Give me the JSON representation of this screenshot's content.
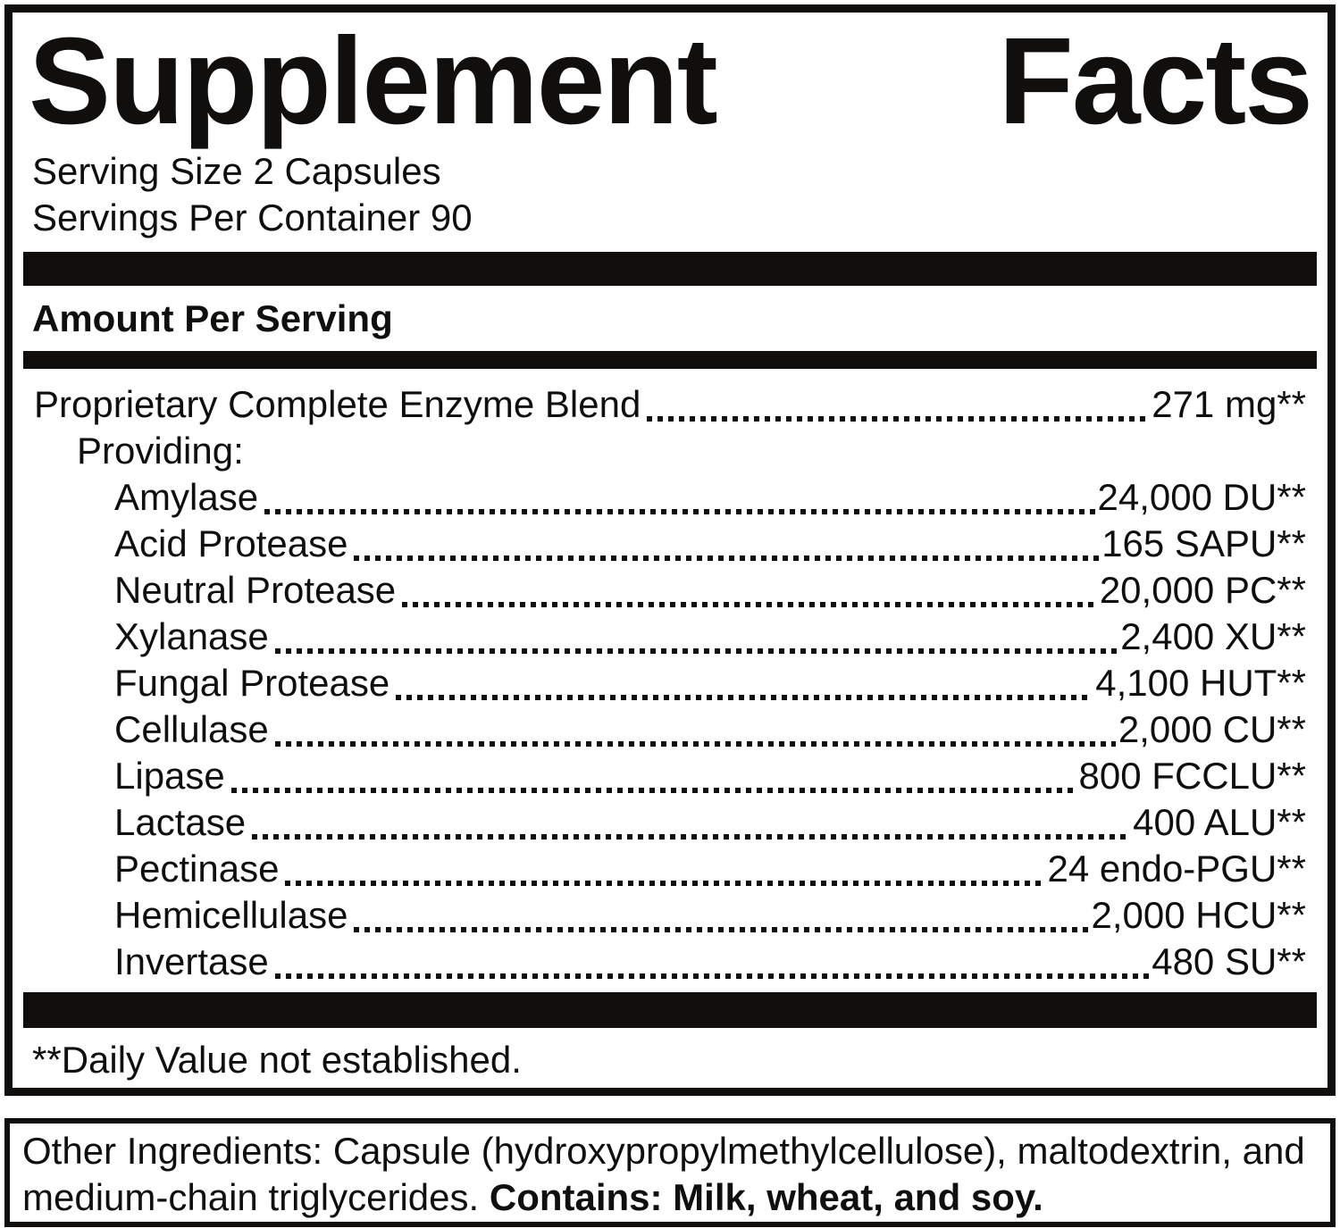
{
  "label": {
    "title": "Supplement Facts",
    "serving_size": "Serving Size 2 Capsules",
    "servings_per_container": "Servings Per Container 90",
    "amount_per_serving": "Amount Per Serving",
    "blend": {
      "label": "Proprietary Complete Enzyme Blend",
      "value": "271 mg**"
    },
    "providing": "Providing:",
    "enzymes": [
      {
        "label": "Amylase",
        "value": "24,000 DU**"
      },
      {
        "label": "Acid Protease",
        "value": "165 SAPU**"
      },
      {
        "label": "Neutral Protease",
        "value": "20,000 PC**"
      },
      {
        "label": "Xylanase",
        "value": "2,400 XU**"
      },
      {
        "label": "Fungal Protease",
        "value": "4,100 HUT**"
      },
      {
        "label": "Cellulase",
        "value": "2,000 CU**"
      },
      {
        "label": "Lipase",
        "value": "800 FCCLU**"
      },
      {
        "label": "Lactase",
        "value": "400 ALU**"
      },
      {
        "label": "Pectinase",
        "value": "24 endo-PGU**"
      },
      {
        "label": "Hemicellulase",
        "value": "2,000 HCU**"
      },
      {
        "label": "Invertase",
        "value": "480 SU**"
      }
    ],
    "footnote": "**Daily Value not established.",
    "other_ingredients": {
      "regular": "Other Ingredients: Capsule (hydroxypropylmethylcellulose), maltodextrin, and medium-chain triglycerides. ",
      "bold": "Contains: Milk, wheat, and soy."
    },
    "colors": {
      "ink": "#100f0d",
      "background": "#ffffff"
    }
  }
}
